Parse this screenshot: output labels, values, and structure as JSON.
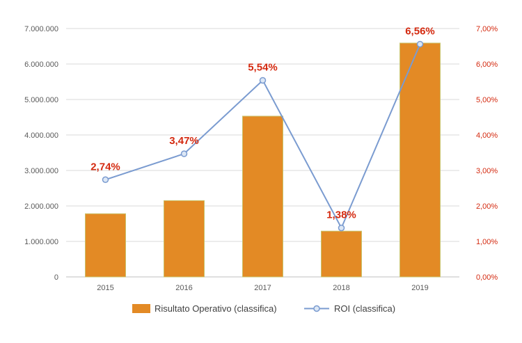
{
  "chart_data": {
    "type": "bar+line",
    "categories": [
      "2015",
      "2016",
      "2017",
      "2018",
      "2019"
    ],
    "series": [
      {
        "name": "Risultato Operativo (classifica)",
        "type": "bar",
        "axis": "left",
        "values": [
          1780000,
          2150000,
          4530000,
          1290000,
          6590000
        ]
      },
      {
        "name": "ROI (classifica)",
        "type": "line",
        "axis": "right",
        "values": [
          2.74,
          3.47,
          5.54,
          1.38,
          6.56
        ],
        "labels": [
          "2,74%",
          "3,47%",
          "5,54%",
          "1,38%",
          "6,56%"
        ]
      }
    ],
    "y_left": {
      "range": [
        0,
        7000000
      ],
      "ticks": [
        "0",
        "1.000.000",
        "2.000.000",
        "3.000.000",
        "4.000.000",
        "5.000.000",
        "6.000.000",
        "7.000.000"
      ]
    },
    "y_right": {
      "range": [
        0,
        7
      ],
      "ticks": [
        "0,00%",
        "1,00%",
        "2,00%",
        "3,00%",
        "4,00%",
        "5,00%",
        "6,00%",
        "7,00%"
      ]
    },
    "grid": true,
    "legend": "bottom-center",
    "colors": {
      "bar": "#e38a25",
      "bar_edge": "#c9c26a",
      "line": "#7a9bd0",
      "marker_fill": "#dce7f5",
      "label": "#d42a10",
      "grid": "#d9d9d9",
      "axis_text": "#595959"
    }
  }
}
